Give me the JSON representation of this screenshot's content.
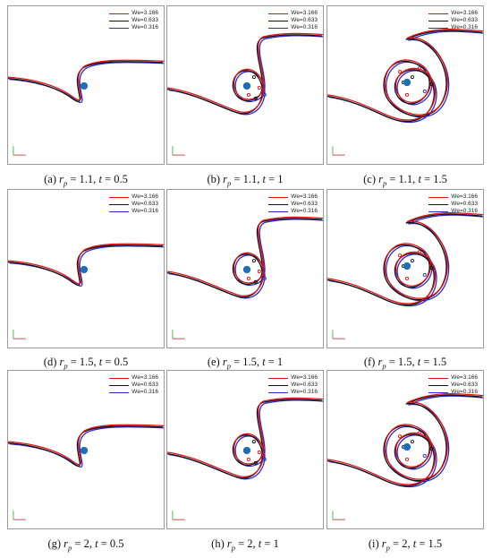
{
  "legend": [
    {
      "label": "We=3.166",
      "color": "#e01010"
    },
    {
      "label": "We=0.633",
      "color": "#111111"
    },
    {
      "label": "We=0.316",
      "color": "#2a2ad0"
    }
  ],
  "captions": [
    {
      "letter": "(a)",
      "rp": "1.1",
      "t": "0.5"
    },
    {
      "letter": "(b)",
      "rp": "1.1",
      "t": "1"
    },
    {
      "letter": "(c)",
      "rp": "1.1",
      "t": "1.5"
    },
    {
      "letter": "(d)",
      "rp": "1.5",
      "t": "0.5"
    },
    {
      "letter": "(e)",
      "rp": "1.5",
      "t": "1"
    },
    {
      "letter": "(f)",
      "rp": "1.5",
      "t": "1.5"
    },
    {
      "letter": "(g)",
      "rp": "2",
      "t": "0.5"
    },
    {
      "letter": "(h)",
      "rp": "2",
      "t": "1"
    },
    {
      "letter": "(i)",
      "rp": "2",
      "t": "1.5"
    }
  ],
  "symbols": {
    "r": "r",
    "p": "p",
    "t": "t",
    "eq": " = ",
    "comma": ", "
  }
}
